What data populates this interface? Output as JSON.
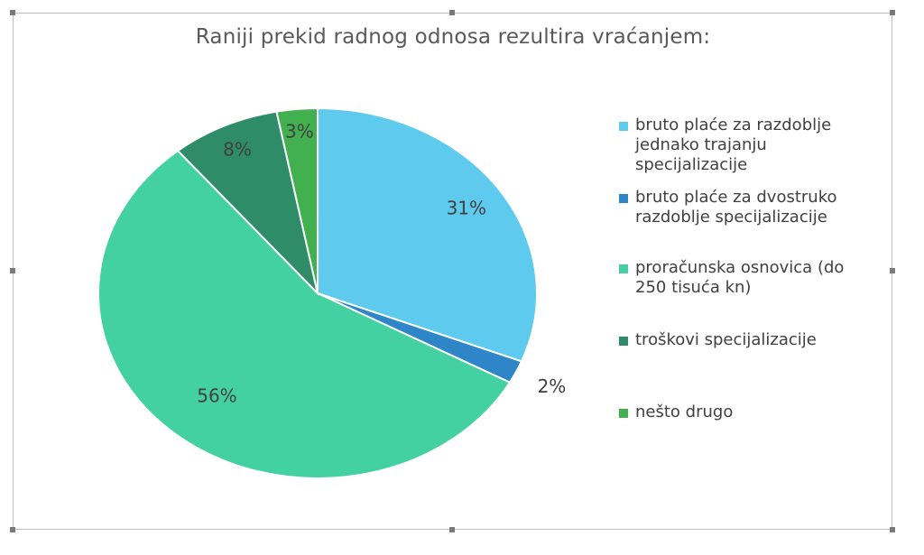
{
  "chart_data": {
    "type": "pie",
    "title": "Raniji prekid radnog odnosa rezultira vraćanjem:",
    "categories": [
      "bruto plaće za razdoblje jednako trajanju specijalizacije",
      "bruto plaće za dvostruko razdoblje  specijalizacije",
      "proračunska osnovica (do 250 tisuća kn)",
      "troškovi specijalizacije",
      "nešto drugo"
    ],
    "values": [
      31,
      2,
      56,
      8,
      3
    ],
    "data_labels": [
      "31%",
      "2%",
      "56%",
      "8%",
      "3%"
    ],
    "colors": [
      "#5ECBEE",
      "#2E86C9",
      "#44D1A2",
      "#2E8C68",
      "#43B04F"
    ],
    "legend_position": "right"
  },
  "legend": {
    "items": [
      {
        "label": "bruto plaće za razdoblje\njednako trajanju\nspecijalizacije",
        "color": "#5ECBEE"
      },
      {
        "label": "bruto plaće za dvostruko\nrazdoblje  specijalizacije",
        "color": "#2E86C9"
      },
      {
        "label": "proračunska osnovica (do\n250 tisuća kn)",
        "color": "#44D1A2"
      },
      {
        "label": "troškovi specijalizacije",
        "color": "#2E8C68"
      },
      {
        "label": "nešto drugo",
        "color": "#43B04F"
      }
    ]
  }
}
